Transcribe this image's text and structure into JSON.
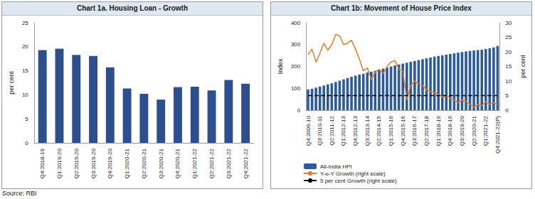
{
  "chart_data": [
    {
      "type": "bar",
      "title": "Chart 1a. Housing Loan - Growth",
      "ylabel": "per cent",
      "categories": [
        "Q4:2018-19",
        "Q1:2019-20",
        "Q2:2019-20",
        "Q3:2019-20",
        "Q4:2019-20",
        "Q1:2020-21",
        "Q2:2020-21",
        "Q3:2020-21",
        "Q4:2020-21",
        "Q1:2021-22",
        "Q2:2021-22",
        "Q3:2021-22",
        "Q4:2021-22"
      ],
      "values": [
        19.3,
        19.6,
        18.3,
        18.1,
        15.7,
        11.3,
        10.2,
        9.0,
        11.6,
        11.7,
        10.9,
        13.1,
        12.3
      ],
      "color": "#2d4f8e",
      "ylim": [
        0,
        25
      ],
      "yticks": [
        0,
        5,
        10,
        15,
        20,
        25
      ],
      "grid": false
    },
    {
      "type": "bar",
      "title": "Chart 1b: Movement of House Price Index",
      "ylabel": "Index",
      "y2label": "per cent",
      "categories": [
        "Q4:2009-10",
        null,
        null,
        "Q3:2010-11",
        null,
        null,
        "Q2:2011-12",
        null,
        null,
        "Q1:2012-13",
        null,
        null,
        "Q4:2012-13",
        null,
        null,
        "Q3:2013-14",
        null,
        null,
        "Q2:2014-15",
        null,
        null,
        "Q1:2015-16",
        null,
        null,
        "Q4:2015-16",
        null,
        null,
        "Q3:2016-17",
        null,
        null,
        "Q2:2017-18",
        null,
        null,
        "Q1:2018-19",
        null,
        null,
        "Q4:2018-19",
        null,
        null,
        "Q3:2019-20",
        null,
        null,
        "Q2:2020-21",
        null,
        null,
        "Q1:2021-22",
        null,
        null,
        "Q4:2021-22(P)"
      ],
      "series": [
        {
          "name": "All-India HPI",
          "type": "bar",
          "color": "#2d5a9b",
          "values": [
            95,
            98,
            103,
            108,
            113,
            118,
            123,
            129,
            135,
            141,
            147,
            153,
            158,
            163,
            167,
            172,
            176,
            180,
            185,
            190,
            195,
            200,
            205,
            209,
            213,
            217,
            221,
            225,
            229,
            233,
            237,
            241,
            245,
            248,
            251,
            254,
            257,
            260,
            263,
            266,
            269,
            271,
            273,
            275,
            277,
            280,
            283,
            287,
            294
          ]
        },
        {
          "name": "Y-o-Y Growth (right scale)",
          "type": "line",
          "color": "#e8792b",
          "axis": "y2",
          "line_style": "solid",
          "values": [
            19,
            21,
            16.5,
            19.5,
            23,
            20.5,
            22.5,
            26,
            25.5,
            22.5,
            23,
            24,
            21,
            17.5,
            13.5,
            14.5,
            10.5,
            13,
            14,
            12.5,
            15,
            16.5,
            17,
            14,
            13.5,
            3.5,
            8.5,
            10,
            9,
            8.5,
            7,
            6.5,
            6,
            5.5,
            4.5,
            5,
            4,
            3.5,
            2.5,
            3.5,
            3,
            2,
            1,
            2,
            1.5,
            3,
            2,
            2.5,
            2
          ]
        },
        {
          "name": "5 per cent Growth (right scale)",
          "type": "line",
          "color": "#000000",
          "axis": "y2",
          "line_style": "dashed",
          "values": [
            5,
            5,
            5,
            5,
            5,
            5,
            5,
            5,
            5,
            5,
            5,
            5,
            5,
            5,
            5,
            5,
            5,
            5,
            5,
            5,
            5,
            5,
            5,
            5,
            5,
            5,
            5,
            5,
            5,
            5,
            5,
            5,
            5,
            5,
            5,
            5,
            5,
            5,
            5,
            5,
            5,
            5,
            5,
            5,
            5,
            5,
            5,
            5,
            5
          ]
        }
      ],
      "ylim": [
        0,
        400
      ],
      "yticks": [
        0,
        100,
        200,
        300,
        400
      ],
      "y2lim": [
        0,
        30
      ],
      "y2ticks": [
        0,
        5,
        10,
        15,
        20,
        25,
        30
      ],
      "grid": false,
      "legend": "bottom"
    }
  ],
  "source": "Source: RBI"
}
